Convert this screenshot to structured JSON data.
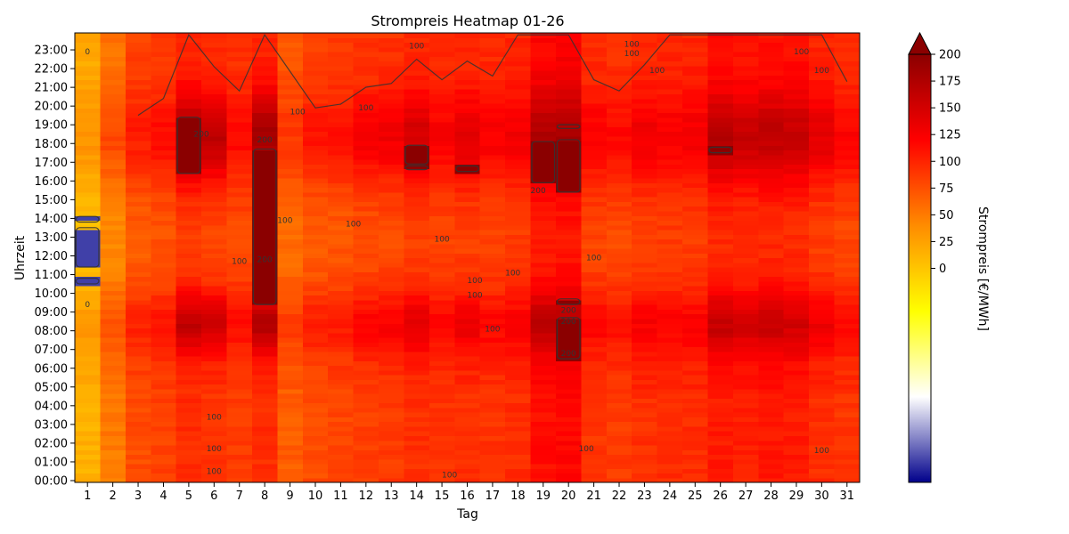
{
  "chart_data": {
    "type": "heatmap",
    "title": "Strompreis Heatmap 01-26",
    "xlabel": "Tag",
    "ylabel": "Uhrzeit",
    "colorbar_label": "Strompreis [€/MWh]",
    "x": [
      1,
      2,
      3,
      4,
      5,
      6,
      7,
      8,
      9,
      10,
      11,
      12,
      13,
      14,
      15,
      16,
      17,
      18,
      19,
      20,
      21,
      22,
      23,
      24,
      25,
      26,
      27,
      28,
      29,
      30,
      31
    ],
    "y_ticks": [
      "00:00",
      "01:00",
      "02:00",
      "03:00",
      "04:00",
      "05:00",
      "06:00",
      "07:00",
      "08:00",
      "09:00",
      "10:00",
      "11:00",
      "12:00",
      "13:00",
      "14:00",
      "15:00",
      "16:00",
      "17:00",
      "18:00",
      "19:00",
      "20:00",
      "21:00",
      "22:00",
      "23:00"
    ],
    "colorbar_ticks": [
      0,
      25,
      50,
      75,
      100,
      125,
      150,
      175,
      200
    ],
    "color_range": [
      -200,
      200
    ],
    "colorbar_extend": "max",
    "colormap": [
      "#00008b",
      "#ffffff",
      "#ffff00",
      "#ff8c00",
      "#ff0000",
      "#8b0000"
    ],
    "contour_levels": [
      0,
      100,
      200
    ],
    "contour_labels": [
      {
        "day": 1,
        "hour": 23.0,
        "text": "0"
      },
      {
        "day": 1,
        "hour": 9.5,
        "text": "0"
      },
      {
        "day": 5.5,
        "hour": 18.6,
        "text": "200"
      },
      {
        "day": 6,
        "hour": 3.5,
        "text": "100"
      },
      {
        "day": 6,
        "hour": 1.8,
        "text": "100"
      },
      {
        "day": 6,
        "hour": 0.6,
        "text": "100"
      },
      {
        "day": 7,
        "hour": 11.8,
        "text": "100"
      },
      {
        "day": 8,
        "hour": 18.3,
        "text": "200"
      },
      {
        "day": 8,
        "hour": 11.9,
        "text": "200"
      },
      {
        "day": 8.8,
        "hour": 14.0,
        "text": "100"
      },
      {
        "day": 9.3,
        "hour": 19.8,
        "text": "100"
      },
      {
        "day": 11.5,
        "hour": 13.8,
        "text": "100"
      },
      {
        "day": 12,
        "hour": 20.0,
        "text": "100"
      },
      {
        "day": 14,
        "hour": 23.3,
        "text": "100"
      },
      {
        "day": 15,
        "hour": 13.0,
        "text": "100"
      },
      {
        "day": 15.3,
        "hour": 0.4,
        "text": "100"
      },
      {
        "day": 16.3,
        "hour": 10.8,
        "text": "100"
      },
      {
        "day": 16.3,
        "hour": 10.0,
        "text": "100"
      },
      {
        "day": 17,
        "hour": 8.2,
        "text": "100"
      },
      {
        "day": 17.8,
        "hour": 11.2,
        "text": "100"
      },
      {
        "day": 18.8,
        "hour": 15.6,
        "text": "200"
      },
      {
        "day": 20,
        "hour": 9.2,
        "text": "200"
      },
      {
        "day": 20,
        "hour": 8.6,
        "text": "200"
      },
      {
        "day": 20,
        "hour": 6.9,
        "text": "200"
      },
      {
        "day": 20.7,
        "hour": 1.8,
        "text": "100"
      },
      {
        "day": 21,
        "hour": 12.0,
        "text": "100"
      },
      {
        "day": 22.5,
        "hour": 23.4,
        "text": "100"
      },
      {
        "day": 22.5,
        "hour": 22.9,
        "text": "100"
      },
      {
        "day": 23.5,
        "hour": 22.0,
        "text": "100"
      },
      {
        "day": 29.2,
        "hour": 23.0,
        "text": "100"
      },
      {
        "day": 30,
        "hour": 22.0,
        "text": "100"
      },
      {
        "day": 30,
        "hour": 1.7,
        "text": "100"
      }
    ],
    "hotspots": [
      {
        "day": 5,
        "from": 16.5,
        "to": 19.5
      },
      {
        "day": 8,
        "from": 9.5,
        "to": 17.8
      },
      {
        "day": 14,
        "from": 17.0,
        "to": 18.0
      },
      {
        "day": 14,
        "from": 16.7,
        "to": 16.9
      },
      {
        "day": 16,
        "from": 16.6,
        "to": 16.9
      },
      {
        "day": 19,
        "from": 16.0,
        "to": 18.2
      },
      {
        "day": 20,
        "from": 15.5,
        "to": 18.3
      },
      {
        "day": 20,
        "from": 18.9,
        "to": 19.1
      },
      {
        "day": 20,
        "from": 9.5,
        "to": 9.8
      },
      {
        "day": 20,
        "from": 6.6,
        "to": 8.8
      },
      {
        "day": 26,
        "from": 17.6,
        "to": 17.9
      }
    ],
    "negatives": [
      {
        "day": 1,
        "from": 11.5,
        "to": 13.6,
        "value": -180
      },
      {
        "day": 1,
        "from": 13.9,
        "to": 14.2,
        "value": -180
      },
      {
        "day": 1,
        "from": 10.6,
        "to": 10.9,
        "value": -180
      }
    ],
    "daily_profile": [
      {
        "day": 1,
        "base": 20,
        "peak": 35
      },
      {
        "day": 2,
        "base": 55,
        "peak": 80
      },
      {
        "day": 3,
        "base": 82,
        "peak": 105
      },
      {
        "day": 4,
        "base": 88,
        "peak": 115
      },
      {
        "day": 5,
        "base": 100,
        "peak": 175
      },
      {
        "day": 6,
        "base": 95,
        "peak": 165
      },
      {
        "day": 7,
        "base": 92,
        "peak": 118
      },
      {
        "day": 8,
        "base": 100,
        "peak": 185
      },
      {
        "day": 9,
        "base": 72,
        "peak": 90
      },
      {
        "day": 10,
        "base": 82,
        "peak": 110
      },
      {
        "day": 11,
        "base": 85,
        "peak": 112
      },
      {
        "day": 12,
        "base": 90,
        "peak": 128
      },
      {
        "day": 13,
        "base": 92,
        "peak": 130
      },
      {
        "day": 14,
        "base": 98,
        "peak": 150
      },
      {
        "day": 15,
        "base": 95,
        "peak": 125
      },
      {
        "day": 16,
        "base": 98,
        "peak": 140
      },
      {
        "day": 17,
        "base": 96,
        "peak": 125
      },
      {
        "day": 18,
        "base": 100,
        "peak": 128
      },
      {
        "day": 19,
        "base": 118,
        "peak": 175
      },
      {
        "day": 20,
        "base": 122,
        "peak": 180
      },
      {
        "day": 21,
        "base": 95,
        "peak": 125
      },
      {
        "day": 22,
        "base": 92,
        "peak": 118
      },
      {
        "day": 23,
        "base": 98,
        "peak": 130
      },
      {
        "day": 24,
        "base": 100,
        "peak": 125
      },
      {
        "day": 25,
        "base": 100,
        "peak": 128
      },
      {
        "day": 26,
        "base": 110,
        "peak": 170
      },
      {
        "day": 27,
        "base": 108,
        "peak": 160
      },
      {
        "day": 28,
        "base": 112,
        "peak": 165
      },
      {
        "day": 29,
        "base": 110,
        "peak": 160
      },
      {
        "day": 30,
        "base": 100,
        "peak": 140
      },
      {
        "day": 31,
        "base": 95,
        "peak": 122
      }
    ]
  }
}
